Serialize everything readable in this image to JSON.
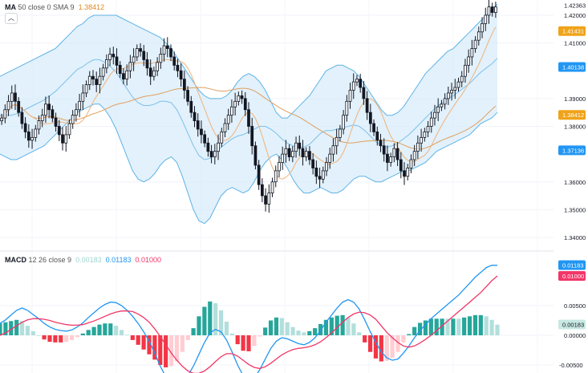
{
  "legend_top": {
    "label": "MA",
    "params": "50 close 0 SMA 9",
    "value": "1.38412"
  },
  "legend_bottom": {
    "label": "MACD",
    "params": "12 26 close 9",
    "hist_value": "0.00183",
    "macd_value": "0.01183",
    "signal_value": "0.01000"
  },
  "colors": {
    "up": "#26a69a",
    "down": "#f23645",
    "candle": "#131722",
    "band": "#5fb3e6",
    "band_fill": "#d6ebfa",
    "ma_fast": "#f0b27a",
    "ma_slow": "#e0a060",
    "macd": "#2196f3",
    "signal": "#f23668"
  },
  "chart_data": [
    {
      "type": "candlestick",
      "title": "",
      "y_ticks": [
        "1.42000",
        "1.41000",
        "1.39000",
        "1.38000",
        "1.36000",
        "1.35000",
        "1.34000"
      ],
      "price_badges": [
        {
          "label": "1.42363",
          "kind": "plain"
        },
        {
          "label": "1.41431",
          "kind": "orange"
        },
        {
          "label": "1.40138",
          "kind": "blue"
        },
        {
          "label": "1.38412",
          "kind": "orange"
        },
        {
          "label": "1.37136",
          "kind": "blue"
        }
      ],
      "closes": [
        1.383,
        1.386,
        1.389,
        1.392,
        1.389,
        1.385,
        1.381,
        1.378,
        1.375,
        1.376,
        1.379,
        1.382,
        1.384,
        1.388,
        1.386,
        1.383,
        1.38,
        1.377,
        1.374,
        1.377,
        1.381,
        1.384,
        1.386,
        1.389,
        1.392,
        1.395,
        1.398,
        1.397,
        1.395,
        1.398,
        1.401,
        1.404,
        1.406,
        1.405,
        1.402,
        1.399,
        1.397,
        1.4,
        1.403,
        1.405,
        1.408,
        1.407,
        1.404,
        1.401,
        1.398,
        1.4,
        1.403,
        1.406,
        1.409,
        1.408,
        1.405,
        1.402,
        1.4,
        1.397,
        1.393,
        1.389,
        1.385,
        1.382,
        1.379,
        1.377,
        1.374,
        1.371,
        1.369,
        1.371,
        1.374,
        1.378,
        1.381,
        1.384,
        1.387,
        1.389,
        1.391,
        1.39,
        1.386,
        1.38,
        1.373,
        1.366,
        1.359,
        1.355,
        1.352,
        1.356,
        1.36,
        1.364,
        1.367,
        1.37,
        1.372,
        1.369,
        1.371,
        1.374,
        1.372,
        1.369,
        1.371,
        1.368,
        1.365,
        1.362,
        1.361,
        1.364,
        1.367,
        1.37,
        1.373,
        1.376,
        1.379,
        1.384,
        1.389,
        1.393,
        1.396,
        1.397,
        1.394,
        1.39,
        1.385,
        1.381,
        1.378,
        1.375,
        1.373,
        1.37,
        1.367,
        1.369,
        1.372,
        1.368,
        1.364,
        1.362,
        1.365,
        1.368,
        1.371,
        1.374,
        1.376,
        1.378,
        1.38,
        1.383,
        1.385,
        1.387,
        1.388,
        1.39,
        1.392,
        1.393,
        1.394,
        1.396,
        1.398,
        1.402,
        1.405,
        1.408,
        1.411,
        1.414,
        1.417,
        1.42,
        1.423,
        1.421,
        1.423
      ],
      "bb_upper": [
        1.398,
        1.399,
        1.4,
        1.401,
        1.402,
        1.403,
        1.404,
        1.405,
        1.406,
        1.407,
        1.408,
        1.41,
        1.412,
        1.414,
        1.416,
        1.417,
        1.419,
        1.42,
        1.42,
        1.42,
        1.42,
        1.42,
        1.419,
        1.418,
        1.417,
        1.416,
        1.415,
        1.414,
        1.413,
        1.412,
        1.41,
        1.408,
        1.405,
        1.402,
        1.399,
        1.396,
        1.393,
        1.391,
        1.39,
        1.39,
        1.39,
        1.391,
        1.393,
        1.396,
        1.398,
        1.399,
        1.398,
        1.396,
        1.393,
        1.389,
        1.385,
        1.383,
        1.383,
        1.385,
        1.387,
        1.389,
        1.391,
        1.394,
        1.397,
        1.4,
        1.401,
        1.402,
        1.402,
        1.401,
        1.4,
        1.398,
        1.395,
        1.392,
        1.389,
        1.386,
        1.384,
        1.384,
        1.385,
        1.387,
        1.39,
        1.393,
        1.396,
        1.399,
        1.401,
        1.403,
        1.405,
        1.407,
        1.408,
        1.41,
        1.412,
        1.414,
        1.416,
        1.418,
        1.42,
        1.422,
        1.424
      ],
      "bb_lower": [
        1.37,
        1.369,
        1.368,
        1.368,
        1.369,
        1.37,
        1.371,
        1.372,
        1.373,
        1.375,
        1.377,
        1.379,
        1.381,
        1.383,
        1.385,
        1.386,
        1.387,
        1.388,
        1.388,
        1.386,
        1.383,
        1.379,
        1.374,
        1.369,
        1.364,
        1.361,
        1.36,
        1.361,
        1.363,
        1.366,
        1.368,
        1.369,
        1.367,
        1.362,
        1.356,
        1.35,
        1.346,
        1.345,
        1.347,
        1.351,
        1.355,
        1.357,
        1.358,
        1.357,
        1.356,
        1.357,
        1.36,
        1.364,
        1.367,
        1.369,
        1.37,
        1.368,
        1.365,
        1.361,
        1.358,
        1.356,
        1.356,
        1.357,
        1.358,
        1.357,
        1.356,
        1.356,
        1.357,
        1.359,
        1.361,
        1.362,
        1.362,
        1.361,
        1.36,
        1.36,
        1.361,
        1.362,
        1.363,
        1.364,
        1.364,
        1.365,
        1.366,
        1.367,
        1.369,
        1.371,
        1.372,
        1.373,
        1.374,
        1.375,
        1.376,
        1.377,
        1.379,
        1.381,
        1.382,
        1.383,
        1.385
      ]
    },
    {
      "type": "macd",
      "title": "",
      "y_ticks": [
        "0.00500",
        "0.00000",
        "-0.00500"
      ],
      "value_badges": [
        {
          "label": "0.01183",
          "kind": "blue"
        },
        {
          "label": "0.01000",
          "kind": "pink"
        },
        {
          "label": "0.00183",
          "kind": "green"
        }
      ],
      "macd": [
        0.002,
        0.0026,
        0.0034,
        0.0042,
        0.0046,
        0.0042,
        0.0035,
        0.0028,
        0.002,
        0.0014,
        0.001,
        0.0008,
        0.0007,
        0.0009,
        0.0014,
        0.0021,
        0.003,
        0.0038,
        0.0046,
        0.0052,
        0.0056,
        0.0055,
        0.005,
        0.0042,
        0.0032,
        0.002,
        0.0006,
        -0.001,
        -0.003,
        -0.0052,
        -0.007,
        -0.0082,
        -0.0086,
        -0.008,
        -0.0068,
        -0.0052,
        -0.0032,
        -0.0012,
        0.0004,
        0.001,
        0.0006,
        -0.0008,
        -0.0028,
        -0.005,
        -0.0068,
        -0.0076,
        -0.0072,
        -0.0058,
        -0.004,
        -0.0022,
        -0.001,
        -0.0004,
        -0.0006,
        -0.001,
        -0.0014,
        -0.0016,
        -0.0012,
        -0.0004,
        0.0008,
        0.0022,
        0.0034,
        0.0046,
        0.0056,
        0.006,
        0.0056,
        0.0044,
        0.0026,
        0.0006,
        -0.0012,
        -0.0028,
        -0.0038,
        -0.0042,
        -0.004,
        -0.003,
        -0.0018,
        -0.0004,
        0.0008,
        0.0018,
        0.0028,
        0.0036,
        0.0044,
        0.0052,
        0.006,
        0.0068,
        0.0078,
        0.0088,
        0.0098,
        0.0106,
        0.0114,
        0.0118,
        0.0118
      ],
      "signal": [
        0.0,
        0.0004,
        0.001,
        0.0016,
        0.0022,
        0.0026,
        0.0028,
        0.0028,
        0.0027,
        0.0025,
        0.0022,
        0.002,
        0.0018,
        0.0017,
        0.0017,
        0.0018,
        0.0021,
        0.0024,
        0.0028,
        0.0032,
        0.0036,
        0.0039,
        0.0041,
        0.0041,
        0.004,
        0.0036,
        0.003,
        0.0022,
        0.0011,
        -0.0002,
        -0.0016,
        -0.003,
        -0.0042,
        -0.0052,
        -0.006,
        -0.0064,
        -0.0064,
        -0.006,
        -0.0053,
        -0.0044,
        -0.0036,
        -0.0031,
        -0.0031,
        -0.0035,
        -0.0042,
        -0.0049,
        -0.0054,
        -0.0056,
        -0.0053,
        -0.0047,
        -0.004,
        -0.0033,
        -0.0028,
        -0.0024,
        -0.0022,
        -0.0021,
        -0.0019,
        -0.0016,
        -0.0011,
        -0.0004,
        0.0004,
        0.0013,
        0.0022,
        0.003,
        0.0036,
        0.0039,
        0.0038,
        0.0034,
        0.0027,
        0.0016,
        0.0005,
        -0.0004,
        -0.0012,
        -0.0018,
        -0.002,
        -0.0018,
        -0.0013,
        -0.0007,
        0.0,
        0.0008,
        0.0016,
        0.0024,
        0.0032,
        0.004,
        0.0048,
        0.0056,
        0.0064,
        0.0072,
        0.0082,
        0.0092,
        0.01
      ]
    }
  ]
}
